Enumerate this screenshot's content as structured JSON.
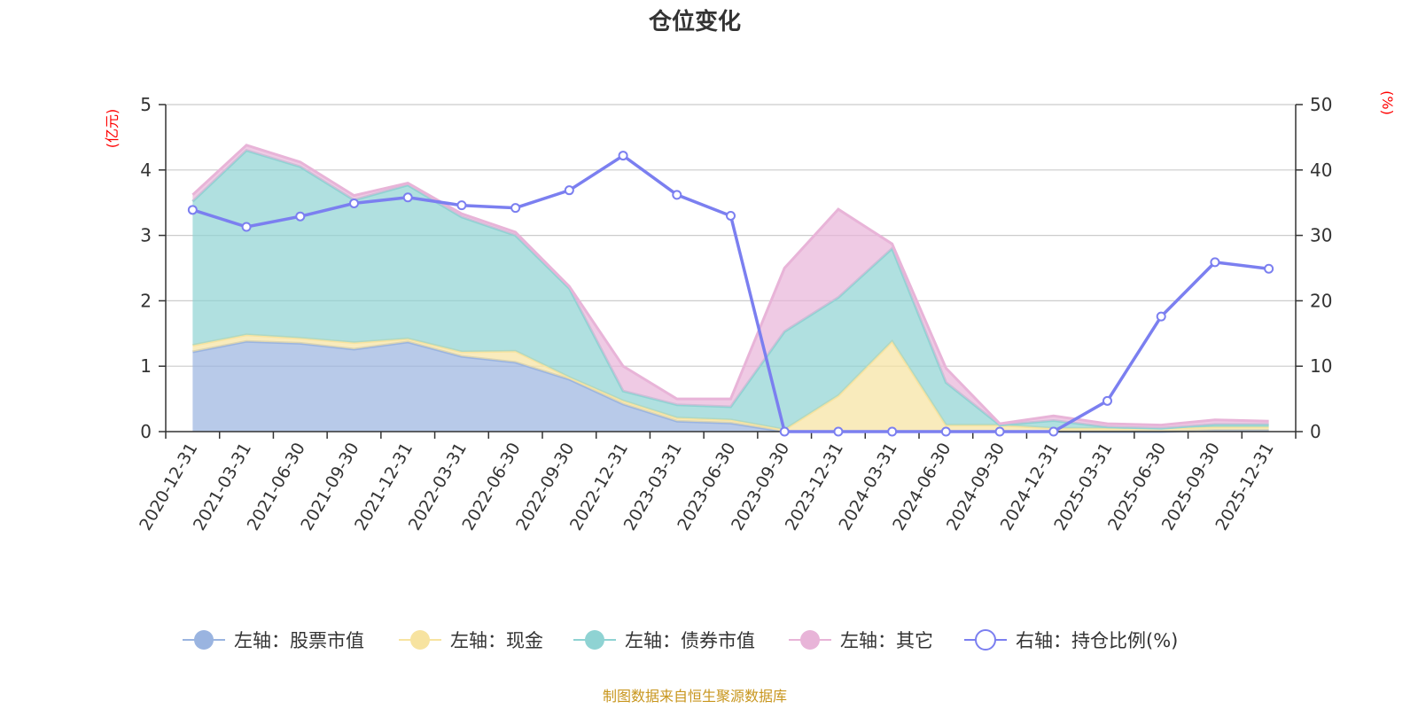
{
  "colors": {
    "stock": "#9ab4e0",
    "cash": "#f7e3a0",
    "bond": "#8fd3d3",
    "other": "#e8b4d8",
    "ratio": "#7b7ff0",
    "unit": "#ff0000",
    "source": "#c8961e"
  },
  "chart_data": {
    "type": "area",
    "title": "仓位变化",
    "left_axis": {
      "unit_label": "(亿元)",
      "ylim": [
        0,
        5
      ],
      "ticks": [
        "0",
        "1",
        "2",
        "3",
        "4",
        "5"
      ]
    },
    "right_axis": {
      "unit_label": "(%)",
      "ylim": [
        0,
        50
      ],
      "ticks": [
        "0",
        "10",
        "20",
        "30",
        "40",
        "50"
      ]
    },
    "categories": [
      "2020-12-31",
      "2021-03-31",
      "2021-06-30",
      "2021-09-30",
      "2021-12-31",
      "2022-03-31",
      "2022-06-30",
      "2022-09-30",
      "2022-12-31",
      "2023-03-31",
      "2023-06-30",
      "2023-09-30",
      "2023-12-31",
      "2024-03-31",
      "2024-06-30",
      "2024-09-30",
      "2024-12-31",
      "2025-03-31",
      "2025-06-30",
      "2025-09-30",
      "2025-12-31"
    ],
    "series": [
      {
        "name": "左轴：股票市值",
        "axis": "left",
        "kind": "stacked-area",
        "color_key": "stock",
        "values": [
          1.22,
          1.38,
          1.35,
          1.26,
          1.37,
          1.15,
          1.06,
          0.8,
          0.42,
          0.16,
          0.13,
          0.0,
          0.0,
          0.0,
          0.0,
          0.0,
          0.0,
          0.0,
          0.0,
          0.02,
          0.02
        ]
      },
      {
        "name": "左轴：现金",
        "axis": "left",
        "kind": "stacked-area",
        "color_key": "cash",
        "values": [
          0.1,
          0.1,
          0.08,
          0.1,
          0.05,
          0.07,
          0.17,
          0.03,
          0.05,
          0.05,
          0.05,
          0.03,
          0.55,
          1.38,
          0.1,
          0.1,
          0.05,
          0.05,
          0.05,
          0.05,
          0.05
        ]
      },
      {
        "name": "左轴：债券市值",
        "axis": "left",
        "kind": "stacked-area",
        "color_key": "bond",
        "values": [
          2.2,
          2.82,
          2.62,
          2.18,
          2.35,
          2.06,
          1.77,
          1.36,
          0.15,
          0.2,
          0.2,
          1.5,
          1.5,
          1.42,
          0.65,
          0.0,
          0.12,
          0.02,
          0.0,
          0.04,
          0.04
        ]
      },
      {
        "name": "左轴：其它",
        "axis": "left",
        "kind": "stacked-area",
        "color_key": "other",
        "values": [
          0.1,
          0.08,
          0.07,
          0.07,
          0.03,
          0.05,
          0.05,
          0.03,
          0.38,
          0.09,
          0.12,
          0.97,
          1.35,
          0.07,
          0.22,
          0.02,
          0.07,
          0.05,
          0.05,
          0.07,
          0.05
        ]
      },
      {
        "name": "右轴：持仓比例(%)",
        "axis": "right",
        "kind": "line",
        "color_key": "ratio",
        "values": [
          33.9,
          31.3,
          32.9,
          34.9,
          35.8,
          34.6,
          34.2,
          36.9,
          42.2,
          36.2,
          33.0,
          0.0,
          0.0,
          0.0,
          0.0,
          0.0,
          0.0,
          4.7,
          17.6,
          25.9,
          24.9
        ]
      }
    ],
    "legend_position": "bottom",
    "grid": true
  },
  "footer": {
    "source": "制图数据来自恒生聚源数据库"
  }
}
